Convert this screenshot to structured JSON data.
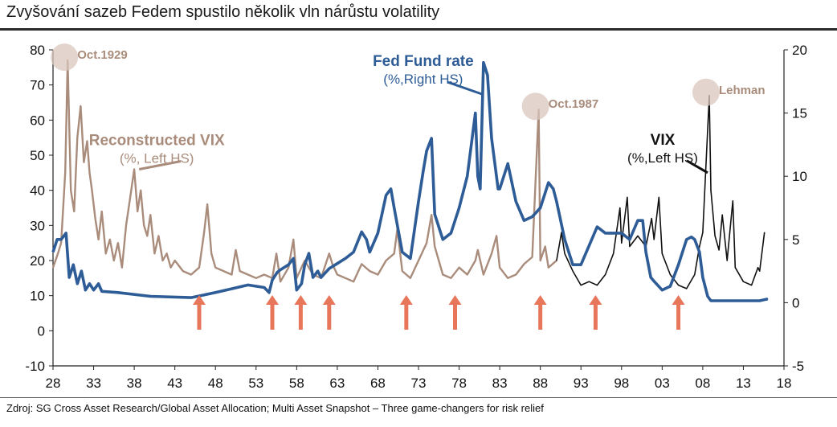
{
  "title": "Zvyšování sazeb Fedem spustilo několik vln nárůstu volatility",
  "source": "Zdroj: SG Cross Asset Research/Global Asset Allocation; Multi Asset Snapshot – Three game-changers for risk relief",
  "colors": {
    "reconstructed_vix": "#a98c7b",
    "fed_funds": "#2e5c97",
    "vix": "#111111",
    "arrows": "#e8765a",
    "event_circle": "#d9c6bd"
  },
  "chart_data": {
    "type": "line",
    "x_ticks": [
      "28",
      "33",
      "38",
      "43",
      "48",
      "53",
      "58",
      "63",
      "68",
      "73",
      "78",
      "83",
      "88",
      "93",
      "98",
      "03",
      "08",
      "13",
      "18"
    ],
    "xlim": [
      1928,
      2018
    ],
    "y_left": {
      "lim": [
        -10,
        80
      ],
      "ticks": [
        "80",
        "70",
        "60",
        "50",
        "40",
        "30",
        "20",
        "10",
        "0",
        "-10"
      ]
    },
    "y_right": {
      "lim": [
        -5,
        20
      ],
      "ticks": [
        "20",
        "15",
        "10",
        "5",
        "0",
        "-5"
      ]
    },
    "series": [
      {
        "name": "Reconstructed VIX",
        "axis": "left",
        "x": [
          1928,
          1928.6,
          1929,
          1929.5,
          1929.8,
          1930.2,
          1930.6,
          1931,
          1931.4,
          1931.8,
          1932.2,
          1932.5,
          1932.8,
          1933.2,
          1933.6,
          1934,
          1934.5,
          1935,
          1935.5,
          1936,
          1936.5,
          1937,
          1937.5,
          1938,
          1938.4,
          1938.8,
          1939.2,
          1939.6,
          1940,
          1940.5,
          1941,
          1941.5,
          1942,
          1942.5,
          1943,
          1944,
          1945,
          1946,
          1946.6,
          1947,
          1947.5,
          1948,
          1949,
          1950,
          1950.5,
          1951,
          1952,
          1953,
          1954,
          1955,
          1955.5,
          1956,
          1957,
          1957.6,
          1958,
          1959,
          1960,
          1961,
          1962,
          1962.4,
          1963,
          1964,
          1965,
          1966,
          1967,
          1968,
          1969,
          1970,
          1970.4,
          1971,
          1972,
          1973,
          1974,
          1974.6,
          1975,
          1976,
          1977,
          1978,
          1979,
          1980,
          1980.3,
          1981,
          1982,
          1982.6,
          1983,
          1984,
          1985,
          1986,
          1987,
          1987.8,
          1988,
          1988.6,
          1989,
          1990
        ],
        "y": [
          18,
          22,
          25,
          45,
          77,
          40,
          34,
          55,
          64,
          48,
          54,
          45,
          40,
          32,
          26,
          34,
          22,
          26,
          20,
          25,
          18,
          30,
          38,
          46,
          34,
          40,
          30,
          27,
          33,
          22,
          27,
          20,
          22,
          18,
          20,
          17,
          16,
          18,
          28,
          36,
          22,
          18,
          17,
          16,
          23,
          17,
          16,
          15,
          16,
          15,
          22,
          14,
          18,
          26,
          15,
          20,
          16,
          15,
          22,
          19,
          16,
          15,
          14,
          19,
          17,
          16,
          20,
          22,
          29,
          17,
          15,
          20,
          25,
          33,
          24,
          16,
          15,
          18,
          16,
          20,
          23,
          16,
          22,
          27,
          18,
          15,
          16,
          19,
          21,
          63,
          20,
          24,
          18,
          20
        ]
      },
      {
        "name": "VIX",
        "axis": "left",
        "x": [
          1990,
          1990.6,
          1991,
          1992,
          1993,
          1994,
          1995,
          1996,
          1997,
          1997.8,
          1998,
          1998.7,
          1999,
          2000,
          2001,
          2001.7,
          2002,
          2002.6,
          2003,
          2004,
          2005,
          2006,
          2007,
          2007.6,
          2008,
          2008.8,
          2009,
          2009.5,
          2010,
          2010.4,
          2011,
          2011.7,
          2012,
          2013,
          2014,
          2014.8,
          2015,
          2015.6
        ],
        "y": [
          20,
          28,
          22,
          17,
          13,
          14,
          13,
          16,
          22,
          35,
          25,
          38,
          24,
          27,
          24,
          32,
          26,
          38,
          22,
          16,
          13,
          12,
          16,
          24,
          28,
          67,
          40,
          27,
          23,
          33,
          20,
          37,
          18,
          14,
          13,
          18,
          17,
          28
        ]
      },
      {
        "name": "Fed Fund rate",
        "axis": "right",
        "x": [
          1928,
          1928.5,
          1929,
          1929.6,
          1930,
          1930.5,
          1931,
          1931.5,
          1932,
          1932.5,
          1933,
          1933.6,
          1934,
          1936,
          1940,
          1945,
          1948,
          1950,
          1952,
          1954,
          1954.6,
          1955,
          1955.6,
          1956,
          1957,
          1957.6,
          1958,
          1958.6,
          1959,
          1959.5,
          1960,
          1960.6,
          1961,
          1962,
          1963,
          1964,
          1965,
          1966,
          1966.6,
          1967,
          1968,
          1969,
          1969.6,
          1970,
          1971,
          1972,
          1973,
          1973.6,
          1974,
          1974.6,
          1975,
          1976,
          1977,
          1978,
          1979,
          1980,
          1980.3,
          1980.6,
          1981,
          1981.5,
          1982,
          1982.8,
          1983,
          1984,
          1985,
          1986,
          1987,
          1988,
          1989,
          1989.6,
          1990,
          1991,
          1992,
          1993,
          1994,
          1995,
          1996,
          1997,
          1998,
          1999,
          2000,
          2000.6,
          2001,
          2001.6,
          2002,
          2003,
          2004,
          2005,
          2006,
          2006.6,
          2007,
          2007.6,
          2008,
          2008.6,
          2009,
          2012,
          2015,
          2016
        ],
        "y": [
          4,
          5,
          5,
          5.5,
          2,
          3,
          1.5,
          2.5,
          1,
          1.5,
          1,
          1.5,
          0.9,
          0.8,
          0.5,
          0.4,
          0.8,
          1.1,
          1.4,
          1.2,
          0.8,
          1.8,
          2.4,
          2.6,
          3,
          3.5,
          1,
          1.5,
          3,
          3.9,
          2,
          2.5,
          2,
          2.7,
          3.1,
          3.5,
          4,
          5.6,
          5,
          4,
          5.5,
          8.5,
          9,
          7.5,
          4,
          3.5,
          8,
          10.5,
          12,
          13,
          7,
          5,
          5.5,
          7.5,
          10,
          15,
          10,
          9,
          19,
          18,
          13,
          9,
          9,
          11,
          8,
          6.5,
          6.8,
          7.5,
          9.5,
          9,
          8,
          5,
          3,
          3,
          4.5,
          6,
          5.5,
          5.5,
          5.5,
          5,
          6.5,
          6.5,
          4,
          2,
          1.7,
          1,
          1.3,
          3,
          5,
          5.2,
          5,
          4,
          2,
          0.5,
          0.15,
          0.15,
          0.15,
          0.3
        ]
      }
    ],
    "annotations": [
      {
        "text": "Oct.1929",
        "x": 1929.8,
        "y": 77
      },
      {
        "text": "Reconstructed VIX",
        "sub": "(%, Left HS)",
        "x": 1938.8,
        "y": 46
      },
      {
        "text": "Fed Fund rate",
        "sub": "(%,Right HS)",
        "x": 1981,
        "y_right": 16.5
      },
      {
        "text": "Oct.1987",
        "x": 1987.8,
        "y": 63
      },
      {
        "text": "Lehman",
        "x": 2008.8,
        "y": 67
      },
      {
        "text": "VIX",
        "sub": "(%,Left HS)",
        "x": 2008.8,
        "y": 45
      }
    ],
    "rate_hike_arrows": [
      1946,
      1955,
      1958.5,
      1962,
      1971.5,
      1977.5,
      1988,
      1994.8,
      2005
    ],
    "grid": false
  }
}
